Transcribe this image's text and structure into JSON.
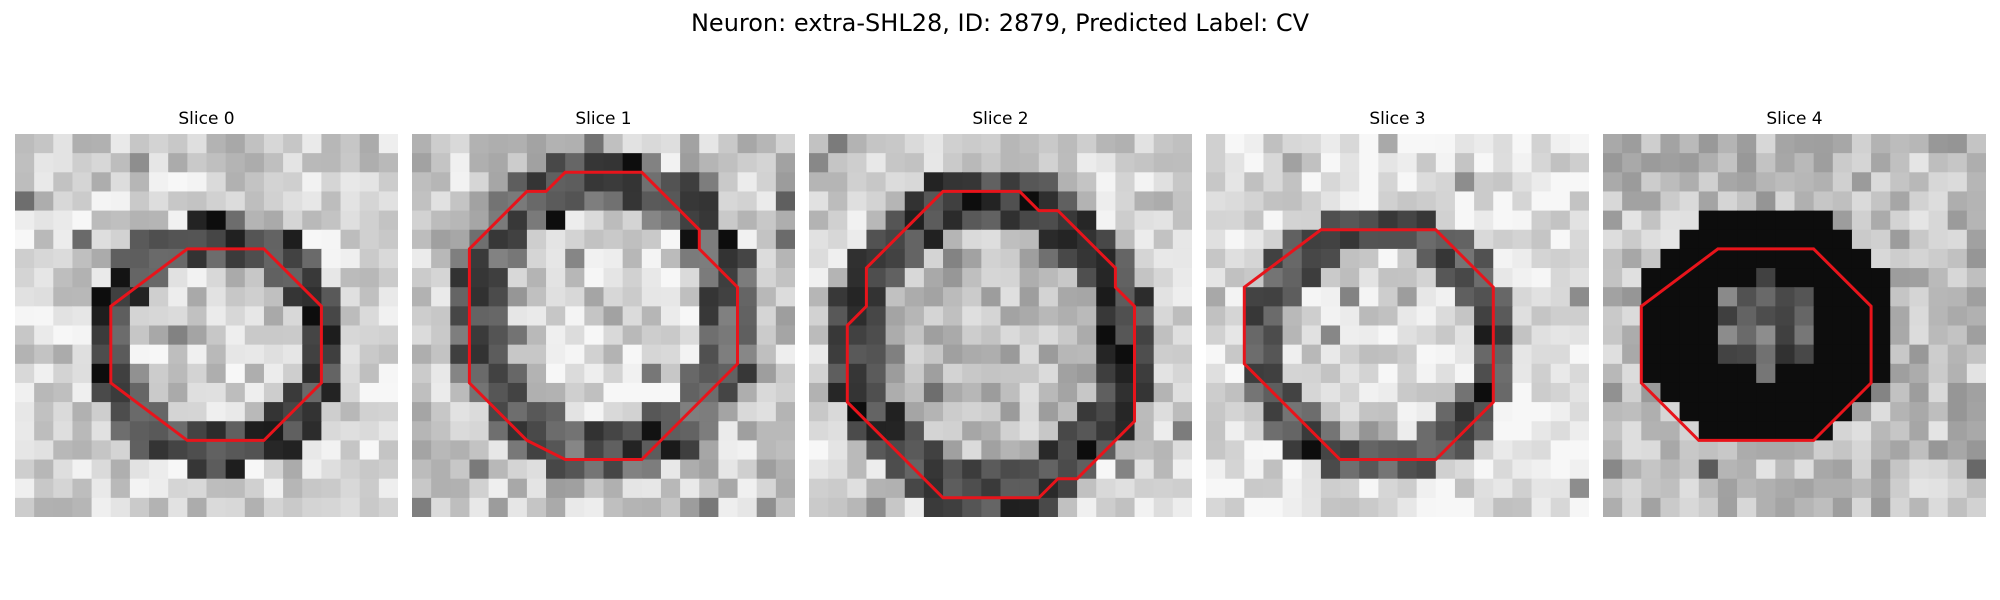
{
  "figure": {
    "title": "Neuron: extra-SHL28, ID: 2879, Predicted Label: CV",
    "colors": {
      "contour": "#e8141b",
      "background": "#ffffff"
    }
  },
  "slices": [
    {
      "title": "Slice 0",
      "contour": [
        [
          9,
          6
        ],
        [
          13,
          6
        ],
        [
          16,
          9
        ],
        [
          16,
          13
        ],
        [
          13,
          16
        ],
        [
          9,
          16
        ],
        [
          5,
          13
        ],
        [
          5,
          9
        ]
      ]
    },
    {
      "title": "Slice 1",
      "contour": [
        [
          8,
          2
        ],
        [
          12,
          2
        ],
        [
          15,
          5
        ],
        [
          15,
          6
        ],
        [
          17,
          8
        ],
        [
          17,
          12
        ],
        [
          12,
          17
        ],
        [
          8,
          17
        ],
        [
          6,
          16
        ],
        [
          5,
          15
        ],
        [
          3,
          13
        ],
        [
          3,
          6
        ],
        [
          6,
          3
        ],
        [
          7,
          3
        ]
      ]
    },
    {
      "title": "Slice 2",
      "contour": [
        [
          7,
          3
        ],
        [
          11,
          3
        ],
        [
          12,
          4
        ],
        [
          13,
          4
        ],
        [
          16,
          7
        ],
        [
          16,
          8
        ],
        [
          17,
          9
        ],
        [
          17,
          15
        ],
        [
          14,
          18
        ],
        [
          13,
          18
        ],
        [
          12,
          19
        ],
        [
          7,
          19
        ],
        [
          2,
          14
        ],
        [
          2,
          10
        ],
        [
          3,
          9
        ],
        [
          3,
          7
        ]
      ]
    },
    {
      "title": "Slice 3",
      "contour": [
        [
          6,
          5
        ],
        [
          12,
          5
        ],
        [
          15,
          8
        ],
        [
          15,
          14
        ],
        [
          12,
          17
        ],
        [
          7,
          17
        ],
        [
          2,
          12
        ],
        [
          2,
          8
        ]
      ]
    },
    {
      "title": "Slice 4",
      "contour": [
        [
          6,
          6
        ],
        [
          11,
          6
        ],
        [
          14,
          9
        ],
        [
          14,
          13
        ],
        [
          11,
          16
        ],
        [
          5,
          16
        ],
        [
          2,
          13
        ],
        [
          2,
          9
        ]
      ]
    }
  ]
}
